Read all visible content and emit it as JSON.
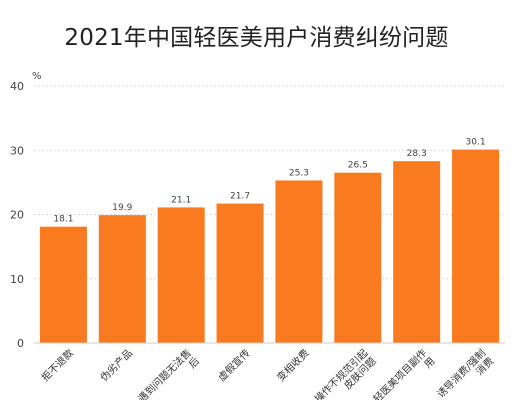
{
  "chart_data": {
    "type": "bar",
    "title": "2021年中国轻医美用户消费纠纷问题",
    "y_unit": "%",
    "ylim": [
      0,
      40
    ],
    "yticks": [
      0,
      10,
      20,
      30,
      40
    ],
    "grid": true,
    "categories": [
      "拒不退款",
      "伪劣产品",
      "遇到问题无法售后",
      "虚假宣传",
      "变相收费",
      "操作不规范引起皮肤问题",
      "轻医美项目副作用",
      "诱导消费/强制消费"
    ],
    "category_lines": [
      [
        "拒不退款"
      ],
      [
        "伪劣产品"
      ],
      [
        "遇到问题无法售",
        "后"
      ],
      [
        "虚假宣传"
      ],
      [
        "变相收费"
      ],
      [
        "操作不规范引起",
        "皮肤问题"
      ],
      [
        "轻医美项目副作",
        "用"
      ],
      [
        "诱导消费/强制",
        "消费"
      ]
    ],
    "values": [
      18.1,
      19.9,
      21.1,
      21.7,
      25.3,
      26.5,
      28.3,
      30.1
    ],
    "bar_color": "#F97A1F"
  }
}
